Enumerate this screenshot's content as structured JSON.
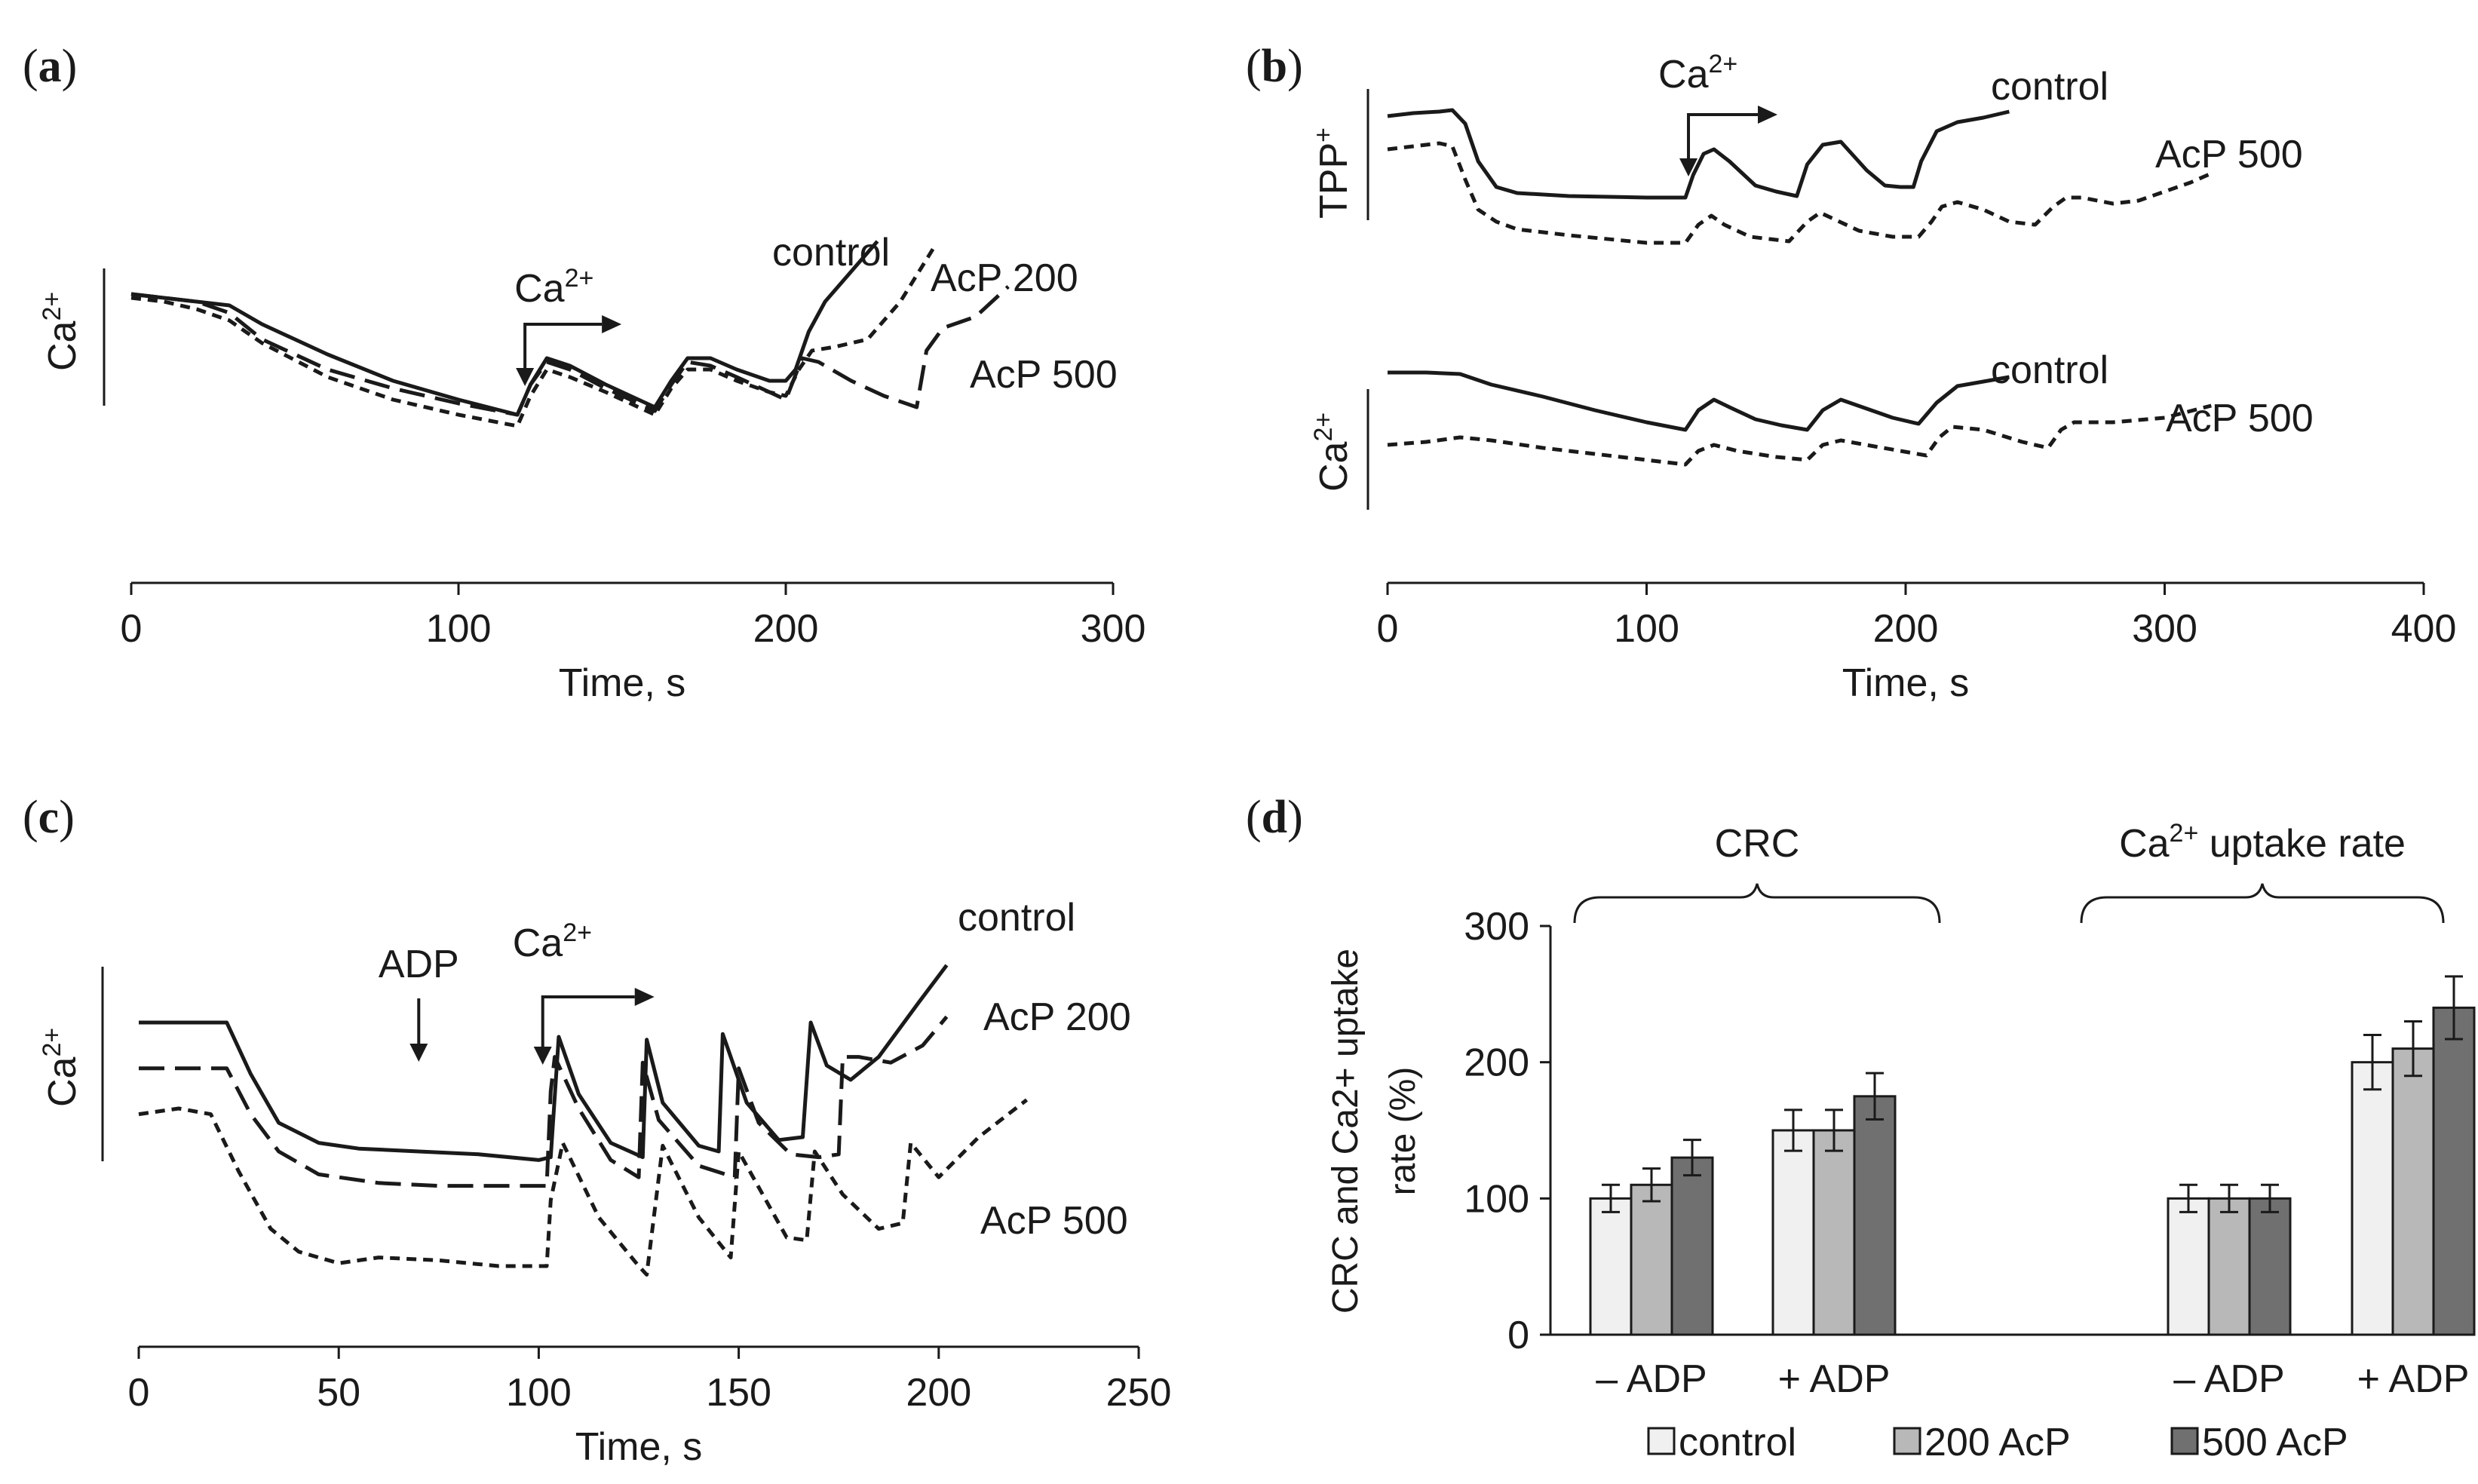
{
  "chart_data": [
    {
      "id": "a",
      "type": "line",
      "panel_label": "a",
      "xlabel": "Time, s",
      "ylabel": {
        "base": "Ca",
        "sup": "2+"
      },
      "xlim": [
        0,
        300
      ],
      "xticks": [
        0,
        100,
        200,
        300
      ],
      "annotations": [
        {
          "base": "Ca",
          "sup": "2+",
          "kind": "arrow-pulse",
          "x": 118
        }
      ],
      "series": [
        {
          "name": "control",
          "style": "solid",
          "x": [
            0,
            10,
            20,
            30,
            40,
            60,
            80,
            100,
            118,
            122,
            127,
            134,
            145,
            155,
            160,
            165,
            170,
            177,
            185,
            195,
            200,
            203,
            207,
            212,
            220,
            228
          ],
          "y": [
            0.7,
            0.69,
            0.68,
            0.67,
            0.62,
            0.54,
            0.47,
            0.42,
            0.38,
            0.46,
            0.53,
            0.51,
            0.46,
            0.42,
            0.4,
            0.47,
            0.53,
            0.53,
            0.5,
            0.47,
            0.47,
            0.5,
            0.6,
            0.68,
            0.76,
            0.84
          ]
        },
        {
          "name": "AcP 200",
          "style": "dotted",
          "x": [
            0,
            10,
            20,
            30,
            40,
            60,
            80,
            100,
            118,
            122,
            127,
            134,
            145,
            155,
            160,
            165,
            170,
            177,
            185,
            195,
            200,
            204,
            208,
            215,
            225,
            235,
            245
          ],
          "y": [
            0.69,
            0.68,
            0.66,
            0.63,
            0.57,
            0.48,
            0.42,
            0.38,
            0.35,
            0.43,
            0.5,
            0.48,
            0.44,
            0.4,
            0.38,
            0.45,
            0.5,
            0.5,
            0.47,
            0.44,
            0.43,
            0.5,
            0.55,
            0.56,
            0.58,
            0.68,
            0.82
          ]
        },
        {
          "name": "AcP 500",
          "style": "dashed",
          "x": [
            0,
            10,
            20,
            30,
            40,
            60,
            80,
            100,
            118,
            122,
            127,
            134,
            145,
            155,
            160,
            165,
            170,
            177,
            185,
            195,
            200,
            205,
            210,
            220,
            230,
            240,
            243,
            248,
            258,
            268
          ],
          "y": [
            0.7,
            0.69,
            0.68,
            0.65,
            0.58,
            0.5,
            0.45,
            0.41,
            0.38,
            0.46,
            0.52,
            0.5,
            0.45,
            0.41,
            0.39,
            0.46,
            0.52,
            0.51,
            0.48,
            0.44,
            0.42,
            0.53,
            0.52,
            0.47,
            0.43,
            0.4,
            0.55,
            0.61,
            0.64,
            0.72
          ]
        }
      ],
      "series_labels": [
        {
          "series": "control",
          "text": "control"
        },
        {
          "series": "AcP 200",
          "text": "AcP 200"
        },
        {
          "series": "AcP 500",
          "text": "AcP 500"
        }
      ]
    },
    {
      "id": "b",
      "type": "line",
      "panel_label": "b",
      "xlabel": "Time, s",
      "xlim": [
        0,
        400
      ],
      "xticks": [
        0,
        100,
        200,
        300,
        400
      ],
      "annotations": [
        {
          "base": "Ca",
          "sup": "2+",
          "kind": "arrow-pulse",
          "x": 115
        }
      ],
      "subplots": [
        {
          "name": "TPP+",
          "ylabel": {
            "base": "TPP",
            "sup": "+"
          },
          "series": [
            {
              "name": "control",
              "style": "solid",
              "x": [
                0,
                10,
                20,
                25,
                30,
                35,
                42,
                50,
                70,
                100,
                115,
                118,
                122,
                126,
                132,
                142,
                150,
                158,
                162,
                168,
                175,
                185,
                192,
                198,
                203,
                206,
                212,
                220,
                230,
                240
              ],
              "y": [
                0.92,
                0.94,
                0.95,
                0.96,
                0.87,
                0.62,
                0.45,
                0.41,
                0.39,
                0.38,
                0.38,
                0.53,
                0.67,
                0.7,
                0.62,
                0.46,
                0.42,
                0.39,
                0.6,
                0.73,
                0.75,
                0.56,
                0.46,
                0.45,
                0.45,
                0.62,
                0.82,
                0.88,
                0.91,
                0.95
              ]
            },
            {
              "name": "AcP 500",
              "style": "dotted",
              "x": [
                0,
                10,
                20,
                25,
                30,
                35,
                42,
                50,
                70,
                100,
                115,
                120,
                125,
                130,
                140,
                155,
                162,
                167,
                172,
                182,
                195,
                205,
                210,
                214,
                220,
                230,
                240,
                250,
                257,
                262,
                268,
                280,
                290,
                300,
                310,
                318
              ],
              "y": [
                0.7,
                0.72,
                0.74,
                0.72,
                0.5,
                0.3,
                0.22,
                0.17,
                0.13,
                0.08,
                0.08,
                0.2,
                0.26,
                0.2,
                0.12,
                0.09,
                0.22,
                0.28,
                0.24,
                0.16,
                0.12,
                0.12,
                0.22,
                0.32,
                0.35,
                0.3,
                0.22,
                0.2,
                0.32,
                0.38,
                0.38,
                0.34,
                0.36,
                0.42,
                0.48,
                0.54
              ]
            }
          ],
          "series_labels": [
            {
              "series": "control",
              "text": "control"
            },
            {
              "series": "AcP 500",
              "text": "AcP 500"
            }
          ]
        },
        {
          "name": "Ca2+",
          "ylabel": {
            "base": "Ca",
            "sup": "2+"
          },
          "series": [
            {
              "name": "control",
              "style": "solid",
              "x": [
                0,
                15,
                28,
                40,
                60,
                80,
                100,
                115,
                120,
                126,
                132,
                142,
                152,
                162,
                168,
                175,
                185,
                195,
                205,
                212,
                220,
                230,
                240
              ],
              "y": [
                0.88,
                0.88,
                0.87,
                0.8,
                0.72,
                0.63,
                0.55,
                0.5,
                0.63,
                0.7,
                0.65,
                0.57,
                0.53,
                0.5,
                0.63,
                0.7,
                0.64,
                0.58,
                0.54,
                0.68,
                0.79,
                0.82,
                0.85
              ]
            },
            {
              "name": "AcP 500",
              "style": "dotted",
              "x": [
                0,
                15,
                28,
                40,
                60,
                80,
                100,
                115,
                120,
                126,
                135,
                150,
                162,
                168,
                175,
                188,
                198,
                208,
                213,
                218,
                230,
                245,
                255,
                260,
                265,
                280,
                300,
                318
              ],
              "y": [
                0.4,
                0.42,
                0.45,
                0.43,
                0.38,
                0.34,
                0.3,
                0.27,
                0.36,
                0.4,
                0.36,
                0.32,
                0.3,
                0.4,
                0.43,
                0.39,
                0.36,
                0.33,
                0.45,
                0.52,
                0.5,
                0.42,
                0.38,
                0.5,
                0.55,
                0.55,
                0.58,
                0.66
              ]
            }
          ],
          "series_labels": [
            {
              "series": "control",
              "text": "control"
            },
            {
              "series": "AcP 500",
              "text": "AcP 500"
            }
          ]
        }
      ]
    },
    {
      "id": "c",
      "type": "line",
      "panel_label": "c",
      "xlabel": "Time, s",
      "ylabel": {
        "base": "Ca",
        "sup": "2+"
      },
      "xlim": [
        0,
        250
      ],
      "xticks": [
        0,
        50,
        100,
        150,
        200,
        250
      ],
      "annotations": [
        {
          "text": "ADP",
          "kind": "arrow",
          "x": 70
        },
        {
          "base": "Ca",
          "sup": "2+",
          "kind": "arrow-pulse",
          "x": 101
        }
      ],
      "series": [
        {
          "name": "control",
          "style": "solid",
          "x": [
            0,
            15,
            22,
            28,
            35,
            45,
            55,
            70,
            85,
            100,
            103,
            105,
            110,
            118,
            126,
            127,
            131,
            140,
            145,
            146,
            152,
            160,
            166,
            168,
            172,
            178,
            185,
            195,
            202
          ],
          "y": [
            0.9,
            0.9,
            0.9,
            0.72,
            0.55,
            0.48,
            0.46,
            0.45,
            0.44,
            0.42,
            0.43,
            0.85,
            0.65,
            0.48,
            0.43,
            0.84,
            0.62,
            0.47,
            0.45,
            0.86,
            0.62,
            0.49,
            0.5,
            0.9,
            0.75,
            0.7,
            0.78,
            0.97,
            1.1
          ]
        },
        {
          "name": "AcP 200",
          "style": "dashed",
          "x": [
            0,
            15,
            22,
            28,
            35,
            45,
            60,
            75,
            90,
            102,
            103,
            104,
            110,
            118,
            125,
            126,
            130,
            140,
            149,
            150,
            155,
            163,
            170,
            175,
            176,
            180,
            188,
            196,
            202
          ],
          "y": [
            0.74,
            0.74,
            0.74,
            0.58,
            0.45,
            0.37,
            0.34,
            0.33,
            0.33,
            0.33,
            0.66,
            0.78,
            0.6,
            0.42,
            0.36,
            0.76,
            0.56,
            0.4,
            0.36,
            0.74,
            0.55,
            0.44,
            0.43,
            0.44,
            0.78,
            0.78,
            0.76,
            0.82,
            0.92
          ]
        },
        {
          "name": "AcP 500",
          "style": "dotted",
          "x": [
            0,
            10,
            18,
            25,
            33,
            40,
            50,
            60,
            75,
            90,
            102,
            103,
            106,
            115,
            125,
            127,
            131,
            140,
            148,
            150,
            154,
            162,
            167,
            169,
            176,
            185,
            191,
            193,
            200,
            210,
            222
          ],
          "y": [
            0.58,
            0.6,
            0.58,
            0.38,
            0.18,
            0.1,
            0.06,
            0.08,
            0.07,
            0.05,
            0.05,
            0.28,
            0.48,
            0.22,
            0.05,
            0.02,
            0.47,
            0.22,
            0.08,
            0.45,
            0.35,
            0.15,
            0.14,
            0.45,
            0.3,
            0.18,
            0.2,
            0.48,
            0.36,
            0.5,
            0.63
          ]
        }
      ],
      "series_labels": [
        {
          "series": "control",
          "text": "control"
        },
        {
          "series": "AcP 200",
          "text": "AcP 200"
        },
        {
          "series": "AcP 500",
          "text": "AcP 500"
        }
      ]
    },
    {
      "id": "d",
      "type": "bar",
      "panel_label": "d",
      "ylabel_lines": [
        "CRC and Ca2+ uptake",
        "rate  (%)"
      ],
      "ylim": [
        0,
        300
      ],
      "yticks": [
        0,
        100,
        200,
        300
      ],
      "categories": [
        "– ADP",
        "+ ADP",
        "– ADP",
        "+ ADP"
      ],
      "groups": [
        {
          "label": "CRC",
          "categories": [
            0,
            1
          ]
        },
        {
          "label": "Ca",
          "sup": "2+",
          "label_rest": " uptake rate",
          "categories": [
            2,
            3
          ]
        }
      ],
      "series": [
        {
          "name": "control",
          "color": "#f0f0f0",
          "values": [
            100,
            150,
            100,
            200
          ],
          "errors": [
            10,
            15,
            10,
            20
          ]
        },
        {
          "name": "200 AcP",
          "color": "#b8b8b8",
          "values": [
            110,
            150,
            100,
            210
          ],
          "errors": [
            12,
            15,
            10,
            20
          ]
        },
        {
          "name": "500 AcP",
          "color": "#707070",
          "values": [
            130,
            175,
            100,
            240
          ],
          "errors": [
            13,
            17,
            10,
            23
          ]
        }
      ]
    }
  ]
}
